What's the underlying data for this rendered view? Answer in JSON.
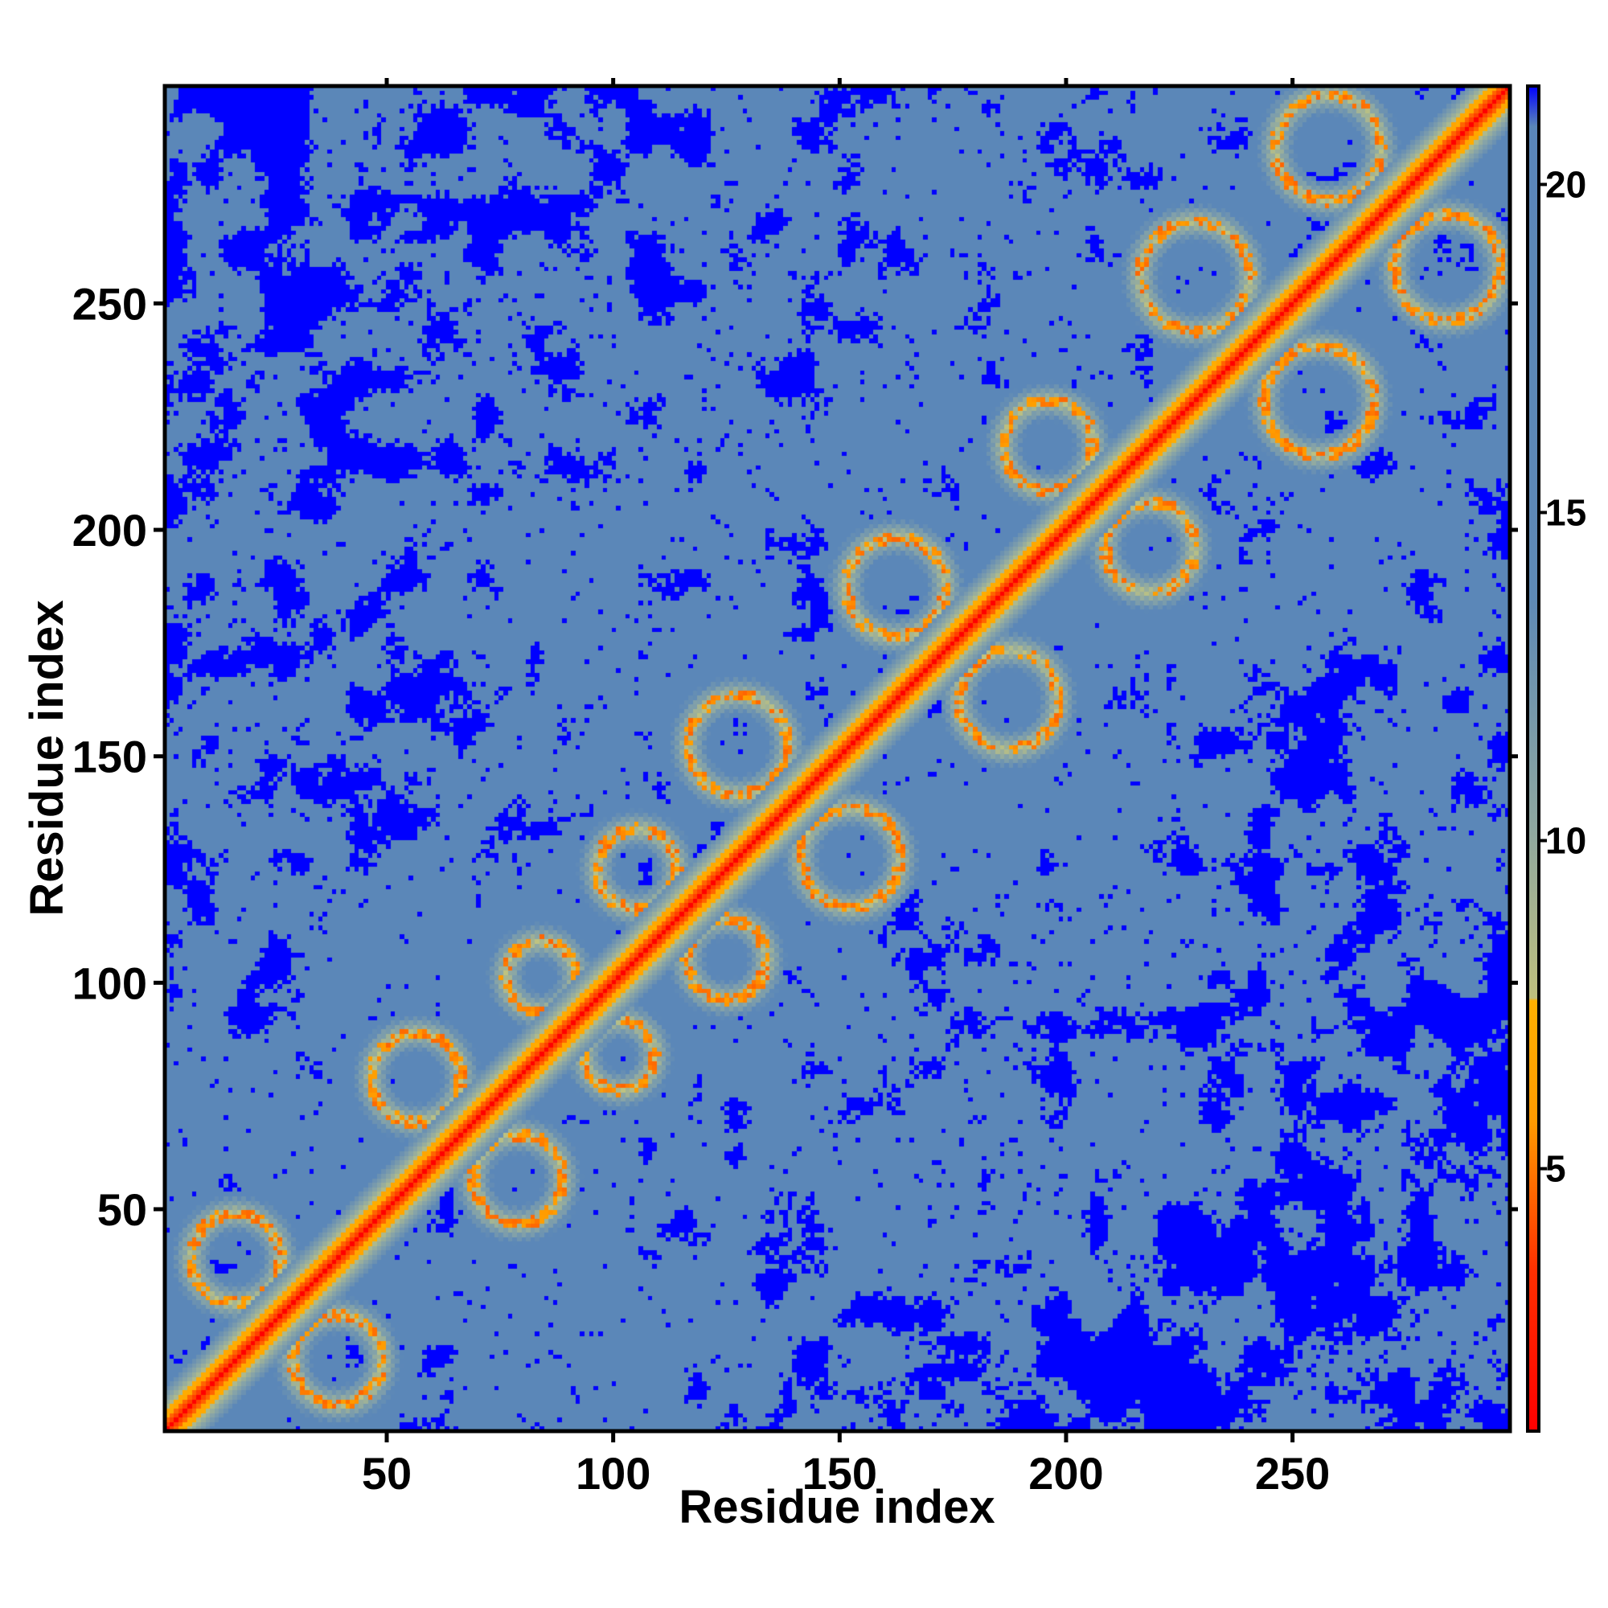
{
  "chart_data": {
    "type": "heatmap",
    "title": "",
    "xlabel": "Residue index",
    "ylabel": "Residue index",
    "n_residues": 298,
    "xlim": [
      1,
      298
    ],
    "ylim": [
      1,
      298
    ],
    "x_ticks": [
      50,
      100,
      150,
      200,
      250
    ],
    "y_ticks": [
      50,
      100,
      150,
      200,
      250
    ],
    "x_tick_labels": [
      "50",
      "100",
      "150",
      "200",
      "250"
    ],
    "y_tick_labels": [
      "50",
      "100",
      "150",
      "200",
      "250"
    ],
    "colorbar": {
      "range": [
        1,
        21.5
      ],
      "ticks": [
        5,
        10,
        15,
        20
      ],
      "tick_labels": [
        "5",
        "10",
        "15",
        "20"
      ],
      "palette": [
        {
          "value": 1,
          "color": "#ff0000"
        },
        {
          "value": 4,
          "color": "#ff4000"
        },
        {
          "value": 6.5,
          "color": "#ff9a00"
        },
        {
          "value": 8.5,
          "color": "#ffb000"
        },
        {
          "value": 8.6,
          "color": "#c8c87a"
        },
        {
          "value": 12.5,
          "color": "#8aa6a6"
        },
        {
          "value": 17,
          "color": "#5b87b8"
        },
        {
          "value": 20.5,
          "color": "#5a86b8"
        },
        {
          "value": 21.5,
          "color": "#0000ff"
        }
      ]
    },
    "description_values": {
      "diagonal_distance": 1,
      "background_distance": 17,
      "far_distance": 22,
      "helix_repeat_residues": [
        [
          5,
          50
        ],
        [
          45,
          90
        ],
        [
          75,
          110
        ],
        [
          95,
          135
        ],
        [
          115,
          165
        ],
        [
          150,
          200
        ],
        [
          185,
          230
        ],
        [
          215,
          270
        ],
        [
          245,
          298
        ]
      ]
    },
    "colors": {
      "near": "#ff0000",
      "contact": "#ff9a00",
      "mid": "#c8c87a",
      "background": "#5a86b8",
      "far": "#0000ff"
    }
  }
}
